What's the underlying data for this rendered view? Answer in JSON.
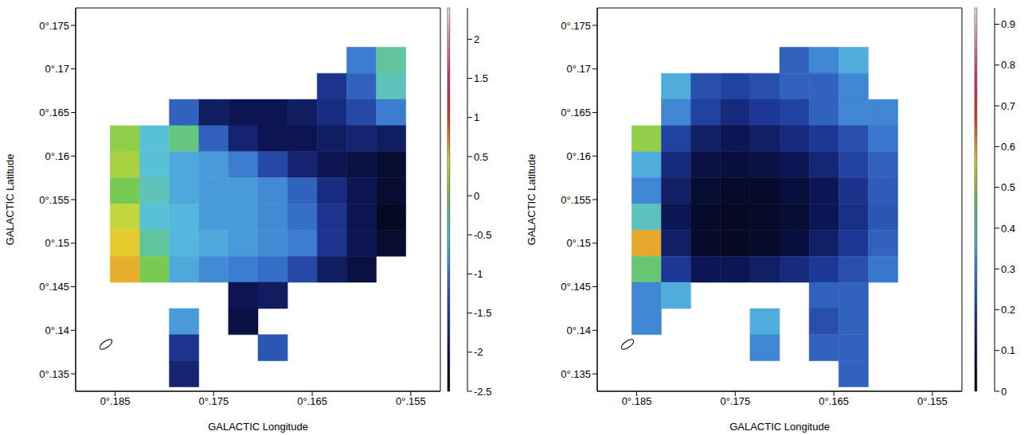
{
  "chart_data": [
    {
      "type": "heatmap",
      "x_label": "GALACTIC Longitude",
      "y_label": "GALACTIC Latitude",
      "xlim": [
        0.189,
        0.152
      ],
      "ylim": [
        0.133,
        0.177
      ],
      "xticks": [
        {
          "value": 0.185,
          "label": "0°.185"
        },
        {
          "value": 0.175,
          "label": "0°.175"
        },
        {
          "value": 0.165,
          "label": "0°.165"
        },
        {
          "value": 0.155,
          "label": "0°.155"
        }
      ],
      "yticks": [
        {
          "value": 0.135,
          "label": "0°.135"
        },
        {
          "value": 0.14,
          "label": "0°.14"
        },
        {
          "value": 0.145,
          "label": "0°.145"
        },
        {
          "value": 0.15,
          "label": "0°.15"
        },
        {
          "value": 0.155,
          "label": "0°.155"
        },
        {
          "value": 0.16,
          "label": "0°.16"
        },
        {
          "value": 0.165,
          "label": "0°.165"
        },
        {
          "value": 0.17,
          "label": "0°.17"
        },
        {
          "value": 0.175,
          "label": "0°.175"
        }
      ],
      "x": [
        0.184,
        0.181,
        0.178,
        0.175,
        0.172,
        0.169,
        0.166,
        0.163,
        0.16,
        0.157
      ],
      "y": [
        0.171,
        0.168,
        0.165,
        0.162,
        0.159,
        0.156,
        0.153,
        0.15,
        0.147,
        0.144,
        0.141,
        0.138,
        0.135
      ],
      "cells": [
        [
          null,
          null,
          null,
          null,
          null,
          null,
          null,
          null,
          -1.0,
          -0.3
        ],
        [
          null,
          null,
          null,
          null,
          null,
          null,
          null,
          -1.6,
          -1.2,
          -0.4
        ],
        [
          null,
          null,
          -1.2,
          -1.9,
          -2.0,
          -2.0,
          -1.9,
          -1.7,
          -1.4,
          -1.0
        ],
        [
          0.1,
          -0.5,
          -0.2,
          -1.2,
          -1.8,
          -2.0,
          -2.0,
          -1.9,
          -1.8,
          -1.9
        ],
        [
          0.2,
          -0.5,
          -0.7,
          -0.8,
          -1.0,
          -1.4,
          -1.8,
          -2.0,
          -2.1,
          -2.2
        ],
        [
          0.0,
          -0.4,
          -0.7,
          -0.8,
          -0.8,
          -0.9,
          -1.2,
          -1.7,
          -2.0,
          -2.2
        ],
        [
          0.3,
          -0.5,
          -0.6,
          -0.8,
          -0.8,
          -0.9,
          -1.1,
          -1.6,
          -2.0,
          -2.3
        ],
        [
          0.5,
          -0.3,
          -0.6,
          -0.7,
          -0.8,
          -0.9,
          -1.0,
          -1.6,
          -2.0,
          -2.2
        ],
        [
          0.6,
          0.0,
          -0.7,
          -0.9,
          -1.0,
          -1.1,
          -1.4,
          -1.9,
          -2.1,
          null
        ],
        [
          null,
          null,
          null,
          null,
          -2.0,
          -1.9,
          null,
          null,
          null,
          null
        ],
        [
          null,
          null,
          -0.8,
          null,
          -2.1,
          null,
          null,
          null,
          null,
          null
        ],
        [
          null,
          null,
          -1.6,
          null,
          null,
          -1.3,
          null,
          null,
          null,
          null
        ],
        [
          null,
          null,
          -1.8,
          null,
          null,
          null,
          null,
          null,
          null,
          null
        ]
      ],
      "colorbar": {
        "lim": [
          -2.5,
          2.4
        ],
        "ticks": [
          -2.5,
          -2,
          -1.5,
          -1,
          -0.5,
          0,
          0.5,
          1,
          1.5,
          2
        ]
      }
    },
    {
      "type": "heatmap",
      "x_label": "GALACTIC Longitude",
      "y_label": "GALACTIC Latitude",
      "xlim": [
        0.189,
        0.152
      ],
      "ylim": [
        0.133,
        0.177
      ],
      "xticks": [
        {
          "value": 0.185,
          "label": "0°.185"
        },
        {
          "value": 0.175,
          "label": "0°.175"
        },
        {
          "value": 0.165,
          "label": "0°.165"
        },
        {
          "value": 0.155,
          "label": "0°.155"
        }
      ],
      "yticks": [
        {
          "value": 0.135,
          "label": "0°.135"
        },
        {
          "value": 0.14,
          "label": "0°.14"
        },
        {
          "value": 0.145,
          "label": "0°.145"
        },
        {
          "value": 0.15,
          "label": "0°.15"
        },
        {
          "value": 0.155,
          "label": "0°.155"
        },
        {
          "value": 0.16,
          "label": "0°.16"
        },
        {
          "value": 0.165,
          "label": "0°.165"
        },
        {
          "value": 0.17,
          "label": "0°.17"
        },
        {
          "value": 0.175,
          "label": "0°.175"
        }
      ],
      "x": [
        0.184,
        0.181,
        0.178,
        0.175,
        0.172,
        0.169,
        0.166,
        0.163,
        0.16,
        0.157
      ],
      "y": [
        0.171,
        0.168,
        0.165,
        0.162,
        0.159,
        0.156,
        0.153,
        0.15,
        0.147,
        0.144,
        0.141,
        0.138,
        0.135
      ],
      "cells": [
        [
          null,
          null,
          null,
          null,
          null,
          0.25,
          0.3,
          0.35,
          null,
          null
        ],
        [
          null,
          0.35,
          0.22,
          0.2,
          0.22,
          0.25,
          0.25,
          0.3,
          null,
          null
        ],
        [
          null,
          0.3,
          0.2,
          0.15,
          0.18,
          0.2,
          0.25,
          0.3,
          0.3,
          null
        ],
        [
          0.5,
          0.2,
          0.12,
          0.1,
          0.12,
          0.15,
          0.18,
          0.22,
          0.28,
          null
        ],
        [
          0.35,
          0.15,
          0.08,
          0.07,
          0.08,
          0.1,
          0.14,
          0.2,
          0.25,
          null
        ],
        [
          0.3,
          0.12,
          0.06,
          0.05,
          0.05,
          0.07,
          0.1,
          0.17,
          0.24,
          null
        ],
        [
          0.4,
          0.1,
          0.05,
          0.04,
          0.05,
          0.06,
          0.1,
          0.16,
          0.23,
          null
        ],
        [
          0.6,
          0.12,
          0.05,
          0.04,
          0.05,
          0.07,
          0.12,
          0.18,
          0.25,
          null
        ],
        [
          0.45,
          0.18,
          0.1,
          0.1,
          0.12,
          0.15,
          0.18,
          0.22,
          0.28,
          null
        ],
        [
          0.3,
          0.35,
          null,
          null,
          null,
          null,
          0.25,
          0.25,
          null,
          null
        ],
        [
          0.3,
          null,
          null,
          null,
          0.35,
          null,
          0.22,
          0.25,
          null,
          null
        ],
        [
          null,
          null,
          null,
          null,
          0.3,
          null,
          0.25,
          0.25,
          null,
          null
        ],
        [
          null,
          null,
          null,
          null,
          null,
          null,
          null,
          0.25,
          null,
          null
        ]
      ],
      "colorbar": {
        "lim": [
          0,
          0.94
        ],
        "ticks": [
          0,
          0.1,
          0.2,
          0.3,
          0.4,
          0.5,
          0.6,
          0.7,
          0.8,
          0.9
        ]
      }
    }
  ]
}
